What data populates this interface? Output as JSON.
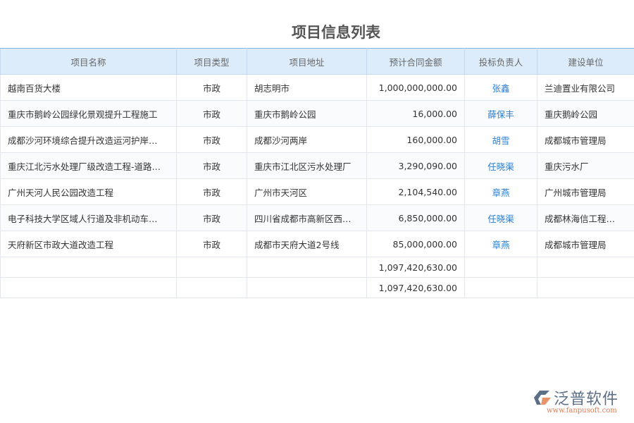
{
  "title": "项目信息列表",
  "columns": [
    "项目名称",
    "项目类型",
    "项目地址",
    "预计合同金额",
    "投标负责人",
    "建设单位"
  ],
  "rows": [
    {
      "name": "越南百货大楼",
      "type": "市政",
      "address": "胡志明市",
      "amount": "1,000,000,000.00",
      "manager": "张鑫",
      "unit": "兰迪置业有限公司"
    },
    {
      "name": "重庆市鹅岭公园绿化景观提升工程施工",
      "type": "市政",
      "address": "重庆市鹅岭公园",
      "amount": "16,000.00",
      "manager": "薛保丰",
      "unit": "重庆鹅岭公园"
    },
    {
      "name": "成都沙河环境综合提升改造运河护岸…",
      "type": "市政",
      "address": "成都沙河两岸",
      "amount": "160,000.00",
      "manager": "胡雪",
      "unit": "成都城市管理局"
    },
    {
      "name": "重庆江北污水处理厂级改造工程-道路…",
      "type": "市政",
      "address": "重庆市江北区污水处理厂",
      "amount": "3,290,090.00",
      "manager": "任晓渠",
      "unit": "重庆污水厂"
    },
    {
      "name": "广州天河人民公园改造工程",
      "type": "市政",
      "address": "广州市天河区",
      "amount": "2,104,540.00",
      "manager": "章燕",
      "unit": "广州城市管理局"
    },
    {
      "name": "电子科技大学区域人行道及非机动车…",
      "type": "市政",
      "address": "四川省成都市高新区西…",
      "amount": "6,850,000.00",
      "manager": "任晓渠",
      "unit": "成都林海信工程…"
    },
    {
      "name": "天府新区市政大道改造工程",
      "type": "市政",
      "address": "成都市天府大道2号线",
      "amount": "85,000,000.00",
      "manager": "章燕",
      "unit": "成都城市管理局"
    }
  ],
  "summary": [
    "1,097,420,630.00",
    "1,097,420,630.00"
  ],
  "logo": {
    "name": "泛普软件",
    "url": "www.fanpusoft.com"
  },
  "colors": {
    "header_bg": "#dcecfb",
    "link": "#2a7fd4"
  }
}
